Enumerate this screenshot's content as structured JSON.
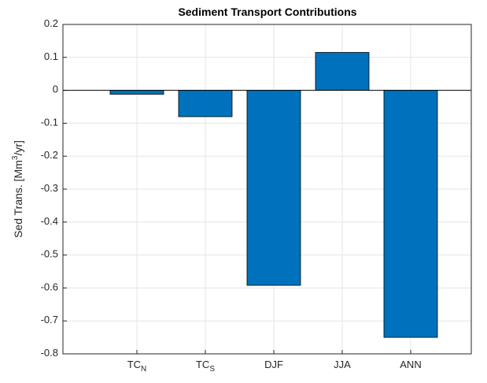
{
  "chart_data": {
    "type": "bar",
    "title": "Sediment Transport Contributions",
    "y_label": "Sed Trans. [Mm^3/yr]",
    "categories": [
      "TC_N",
      "TC_S",
      "DJF",
      "JJA",
      "ANN"
    ],
    "values": [
      -0.012,
      -0.08,
      -0.592,
      0.115,
      -0.75
    ],
    "color": "#0072bd",
    "ylim": [
      -0.8,
      0.2
    ],
    "yticks": [
      -0.8,
      -0.7,
      -0.6,
      -0.5,
      -0.4,
      -0.3,
      -0.2,
      -0.1,
      0,
      0.1,
      0.2
    ],
    "grid": true
  }
}
